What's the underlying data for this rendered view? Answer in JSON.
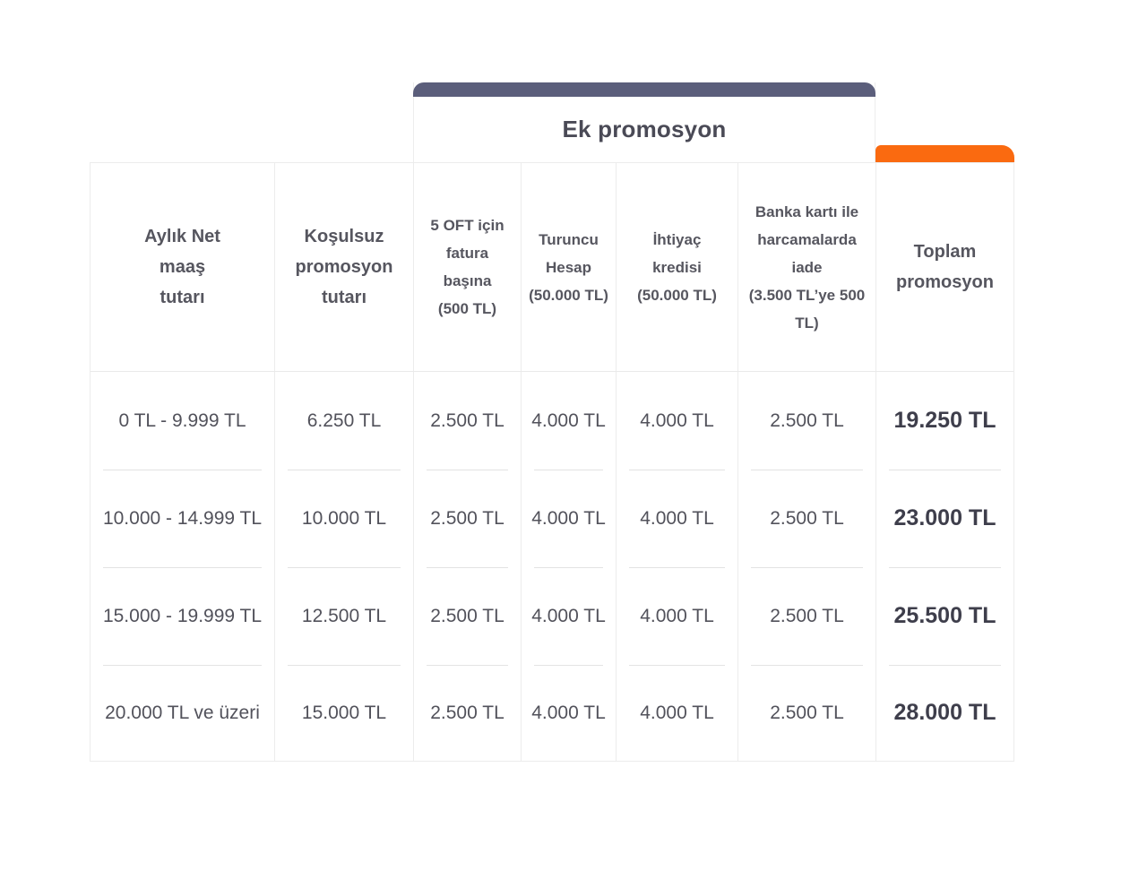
{
  "colors": {
    "dark_bar": "#5b5e7b",
    "orange_bar": "#fa6a10",
    "table_border": "#ececec",
    "header_text": "#56565f",
    "cell_text": "#52525b",
    "total_text": "#3e3e4b"
  },
  "table": {
    "group_header": "Ek promosyon",
    "columns": [
      "Aylık Net\nmaaş\ntutarı",
      "Koşulsuz\npromosyon\ntutarı",
      "5 OFT için\nfatura\nbaşına\n(500 TL)",
      "Turuncu\nHesap\n(50.000 TL)",
      "İhtiyaç\nkredisi\n(50.000 TL)",
      "Banka kartı ile\nharcamalarda\niade\n(3.500 TL’ye 500\nTL)",
      "Toplam\npromosyon"
    ],
    "rows": [
      {
        "salary_range": "0 TL - 9.999 TL",
        "unconditional": "6.250 TL",
        "oft_invoice": "2.500 TL",
        "orange_account": "4.000 TL",
        "consumer_loan": "4.000 TL",
        "debit_cashback": "2.500 TL",
        "total": "19.250 TL"
      },
      {
        "salary_range": "10.000 - 14.999 TL",
        "unconditional": "10.000 TL",
        "oft_invoice": "2.500 TL",
        "orange_account": "4.000 TL",
        "consumer_loan": "4.000 TL",
        "debit_cashback": "2.500 TL",
        "total": "23.000 TL"
      },
      {
        "salary_range": "15.000 - 19.999 TL",
        "unconditional": "12.500 TL",
        "oft_invoice": "2.500 TL",
        "orange_account": "4.000 TL",
        "consumer_loan": "4.000 TL",
        "debit_cashback": "2.500 TL",
        "total": "25.500 TL"
      },
      {
        "salary_range": "20.000 TL ve üzeri",
        "unconditional": "15.000 TL",
        "oft_invoice": "2.500 TL",
        "orange_account": "4.000 TL",
        "consumer_loan": "4.000 TL",
        "debit_cashback": "2.500 TL",
        "total": "28.000 TL"
      }
    ]
  },
  "chart_data": {
    "type": "table",
    "title": "Ek promosyon",
    "columns": [
      "Aylık Net maaş tutarı",
      "Koşulsuz promosyon tutarı",
      "5 OFT için fatura başına (500 TL)",
      "Turuncu Hesap (50.000 TL)",
      "İhtiyaç kredisi (50.000 TL)",
      "Banka kartı ile harcamalarda iade (3.500 TL’ye 500 TL)",
      "Toplam promosyon"
    ],
    "grouped_columns": {
      "group_label": "Ek promosyon",
      "members": [
        3,
        4,
        5,
        6
      ]
    },
    "rows": [
      [
        "0 TL - 9.999 TL",
        "6.250 TL",
        "2.500 TL",
        "4.000 TL",
        "4.000 TL",
        "2.500 TL",
        "19.250 TL"
      ],
      [
        "10.000 - 14.999 TL",
        "10.000 TL",
        "2.500 TL",
        "4.000 TL",
        "4.000 TL",
        "2.500 TL",
        "23.000 TL"
      ],
      [
        "15.000 - 19.999 TL",
        "12.500 TL",
        "2.500 TL",
        "4.000 TL",
        "4.000 TL",
        "2.500 TL",
        "25.500 TL"
      ],
      [
        "20.000 TL ve üzeri",
        "15.000 TL",
        "2.500 TL",
        "4.000 TL",
        "4.000 TL",
        "2.500 TL",
        "28.000 TL"
      ]
    ]
  }
}
